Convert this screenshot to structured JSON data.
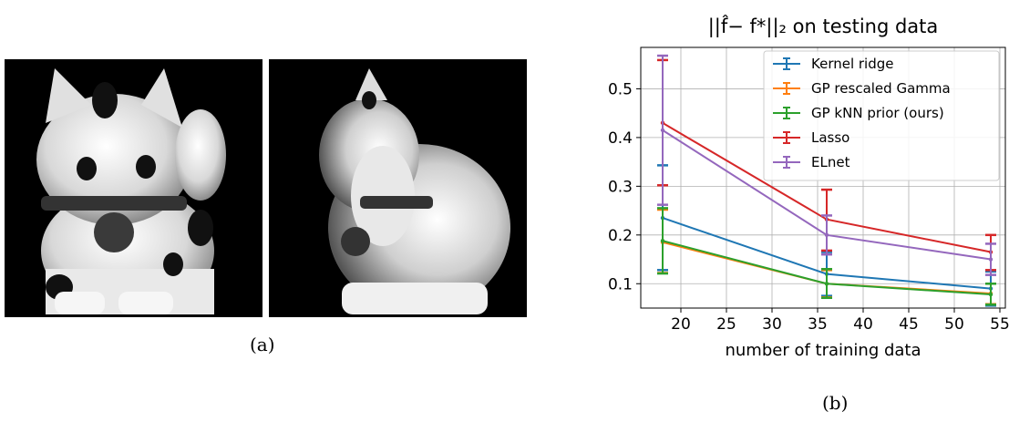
{
  "figure": {
    "caption_a": "(a)",
    "caption_b": "(b)",
    "image_a1": "maneki-neko figurine, front view",
    "image_a2": "maneki-neko figurine, side view"
  },
  "chart_data": {
    "type": "line",
    "title": "||f̂− f*||₂ on testing data",
    "xlabel": "number of training data",
    "ylabel": "",
    "x": [
      18,
      36,
      54
    ],
    "xlim": [
      15.6,
      55.6
    ],
    "ylim": [
      0.05,
      0.585
    ],
    "xticks": [
      20,
      25,
      30,
      35,
      40,
      45,
      50,
      55
    ],
    "yticks": [
      0.1,
      0.2,
      0.3,
      0.4,
      0.5
    ],
    "grid": true,
    "legend_position": "top-right",
    "series": [
      {
        "name": "Kernel ridge",
        "color": "#1f77b4",
        "values": [
          0.235,
          0.12,
          0.09
        ],
        "err_low": [
          0.128,
          0.075,
          0.055
        ],
        "err_high": [
          0.343,
          0.165,
          0.125
        ]
      },
      {
        "name": "GP rescaled Gamma",
        "color": "#ff7f0e",
        "values": [
          0.185,
          0.1,
          0.08
        ],
        "err_low": [
          0.122,
          0.072,
          0.058
        ],
        "err_high": [
          0.252,
          0.128,
          0.1
        ]
      },
      {
        "name": "GP kNN prior (ours)",
        "color": "#2ca02c",
        "values": [
          0.188,
          0.1,
          0.078
        ],
        "err_low": [
          0.121,
          0.071,
          0.057
        ],
        "err_high": [
          0.255,
          0.13,
          0.1
        ]
      },
      {
        "name": "Lasso",
        "color": "#d62728",
        "values": [
          0.43,
          0.232,
          0.165
        ],
        "err_low": [
          0.302,
          0.168,
          0.128
        ],
        "err_high": [
          0.559,
          0.293,
          0.2
        ]
      },
      {
        "name": "ELnet",
        "color": "#9467bd",
        "values": [
          0.415,
          0.2,
          0.15
        ],
        "err_low": [
          0.262,
          0.16,
          0.118
        ],
        "err_high": [
          0.568,
          0.24,
          0.182
        ]
      }
    ]
  }
}
